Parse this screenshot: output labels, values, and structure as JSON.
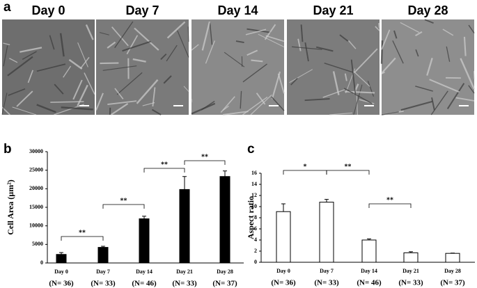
{
  "figure": {
    "panel_labels": [
      "a",
      "b",
      "c"
    ],
    "image_titles": [
      "Day 0",
      "Day 7",
      "Day 14",
      "Day 21",
      "Day 28"
    ]
  },
  "chart_data": [
    {
      "type": "bar",
      "ylabel": "Cell Area (µm²)",
      "categories": [
        "Day 0",
        "Day 7",
        "Day 14",
        "Day 21",
        "Day 28"
      ],
      "sample_sizes": [
        "(N= 36)",
        "(N= 33)",
        "(N= 46)",
        "(N= 33)",
        "(N= 37)"
      ],
      "values": [
        2300,
        4200,
        11900,
        19800,
        23300
      ],
      "errors": [
        500,
        300,
        700,
        3500,
        1500
      ],
      "color": "#000000",
      "ylim": [
        0,
        30000
      ],
      "yticks": [
        0,
        5000,
        10000,
        15000,
        20000,
        25000,
        30000
      ],
      "annotations": [
        "**",
        "**",
        "**",
        "**"
      ]
    },
    {
      "type": "bar",
      "ylabel": "Aspect ratio",
      "categories": [
        "Day 0",
        "Day 7",
        "Day 14",
        "Day 21",
        "Day 28"
      ],
      "sample_sizes": [
        "(N= 36)",
        "(N= 33)",
        "(N= 46)",
        "(N= 33)",
        "(N= 37)"
      ],
      "values": [
        9.1,
        10.8,
        4.0,
        1.7,
        1.6
      ],
      "errors": [
        1.4,
        0.5,
        0.2,
        0.2,
        0.05
      ],
      "color": "#ffffff",
      "ylim": [
        0,
        16
      ],
      "yticks": [
        0,
        2,
        4,
        6,
        8,
        10,
        12,
        14,
        16
      ],
      "annotations": [
        "*",
        "**",
        "**"
      ]
    }
  ]
}
